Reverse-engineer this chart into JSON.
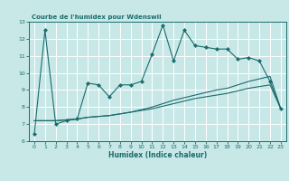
{
  "title": "Courbe de l'humidex pour Wdenswil",
  "xlabel": "Humidex (Indice chaleur)",
  "bg_color": "#c8e8e8",
  "grid_color": "#ffffff",
  "line_color": "#1a6b6b",
  "xlim": [
    -0.5,
    23.5
  ],
  "ylim": [
    6,
    13
  ],
  "xticks": [
    0,
    1,
    2,
    3,
    4,
    5,
    6,
    7,
    8,
    9,
    10,
    11,
    12,
    13,
    14,
    15,
    16,
    17,
    18,
    19,
    20,
    21,
    22,
    23
  ],
  "yticks": [
    6,
    7,
    8,
    9,
    10,
    11,
    12,
    13
  ],
  "series1_x": [
    0,
    1,
    2,
    3,
    4,
    5,
    6,
    7,
    8,
    9,
    10,
    11,
    12,
    13,
    14,
    15,
    16,
    17,
    18,
    19,
    20,
    21,
    22,
    23
  ],
  "series1_y": [
    6.4,
    12.5,
    7.0,
    7.2,
    7.3,
    9.4,
    9.3,
    8.6,
    9.3,
    9.3,
    9.5,
    11.1,
    12.8,
    10.7,
    12.5,
    11.6,
    11.5,
    11.4,
    11.4,
    10.8,
    10.9,
    10.7,
    9.5,
    7.9
  ],
  "series2_x": [
    0,
    1,
    2,
    3,
    4,
    5,
    6,
    7,
    8,
    9,
    10,
    11,
    12,
    13,
    14,
    15,
    16,
    17,
    18,
    19,
    20,
    21,
    22,
    23
  ],
  "series2_y": [
    7.2,
    7.2,
    7.2,
    7.25,
    7.3,
    7.4,
    7.45,
    7.5,
    7.6,
    7.7,
    7.8,
    7.9,
    8.05,
    8.2,
    8.35,
    8.5,
    8.6,
    8.7,
    8.8,
    8.95,
    9.1,
    9.2,
    9.3,
    7.9
  ],
  "series3_x": [
    0,
    1,
    2,
    3,
    4,
    5,
    6,
    7,
    8,
    9,
    10,
    11,
    12,
    13,
    14,
    15,
    16,
    17,
    18,
    19,
    20,
    21,
    22,
    23
  ],
  "series3_y": [
    7.2,
    7.2,
    7.2,
    7.25,
    7.3,
    7.4,
    7.45,
    7.5,
    7.6,
    7.7,
    7.85,
    8.0,
    8.2,
    8.4,
    8.55,
    8.7,
    8.85,
    9.0,
    9.1,
    9.3,
    9.5,
    9.65,
    9.8,
    7.9
  ]
}
